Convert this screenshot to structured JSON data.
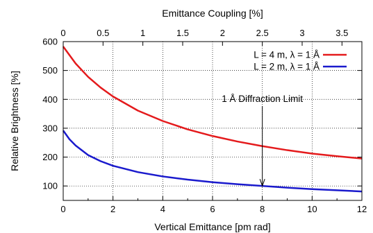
{
  "chart_data": {
    "type": "line",
    "xlabel": "Vertical Emittance [pm rad]",
    "ylabel": "Relative Brightness [%]",
    "x2label": "Emittance Coupling [%]",
    "xlim": [
      0,
      12
    ],
    "ylim": [
      50,
      600
    ],
    "x2lim": [
      0,
      3.75
    ],
    "xticks": [
      0,
      2,
      4,
      6,
      8,
      10,
      12
    ],
    "xtick_labels": [
      "0",
      "2",
      "4",
      "6",
      "8",
      "10",
      "12"
    ],
    "yticks": [
      100,
      200,
      300,
      400,
      500,
      600
    ],
    "ytick_labels": [
      "100",
      "200",
      "300",
      "400",
      "500",
      "600"
    ],
    "x2ticks": [
      0,
      0.5,
      1,
      1.5,
      2,
      2.5,
      3,
      3.5
    ],
    "x2tick_labels": [
      "0",
      "0.5",
      "1",
      "1.5",
      "2",
      "2.5",
      "3",
      "3.5"
    ],
    "grid": true,
    "legend_position": "top-right",
    "series": [
      {
        "name": "L = 4 m, λ = 1 Å",
        "color": "#e41a1c",
        "x": [
          0,
          0.5,
          1,
          1.5,
          2,
          3,
          4,
          5,
          6,
          7,
          8,
          9,
          10,
          11,
          12
        ],
        "y": [
          583,
          524,
          478,
          441,
          410,
          361,
          325,
          296,
          273,
          254,
          238,
          224,
          212,
          203,
          195
        ]
      },
      {
        "name": "L = 2 m, λ = 1 Å",
        "color": "#1a1acd",
        "x": [
          0,
          0.25,
          0.5,
          1,
          1.5,
          2,
          3,
          4,
          5,
          6,
          7,
          8,
          9,
          10,
          11,
          12
        ],
        "y": [
          292,
          262,
          240,
          207,
          186,
          170,
          148,
          133,
          122,
          113,
          106,
          100,
          94,
          89,
          85,
          81
        ]
      }
    ],
    "annotations": [
      {
        "text": "1 Å Diffraction Limit",
        "x": 8,
        "y": 100
      }
    ]
  }
}
